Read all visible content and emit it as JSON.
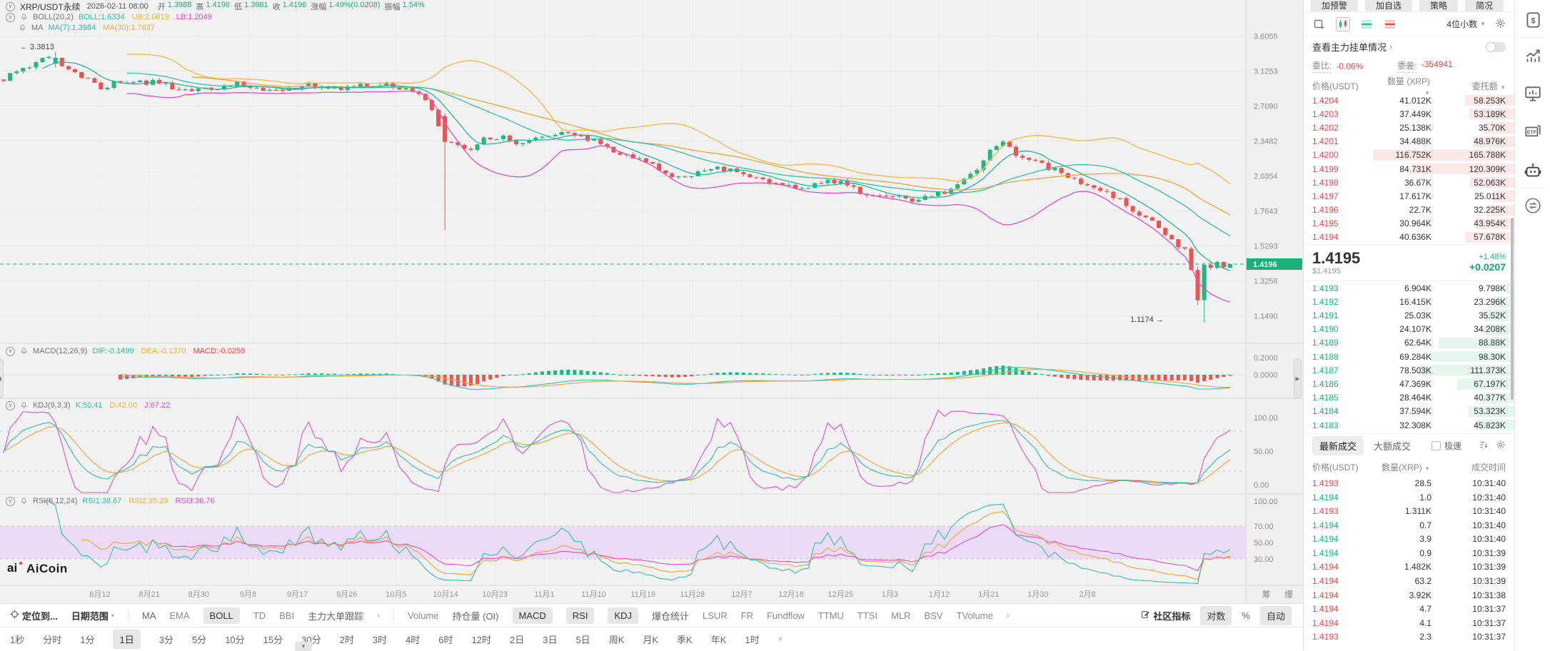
{
  "main_legend": {
    "symbol": "XRP/USDT永续",
    "datetime": "2026-02-11 08:00",
    "stats": [
      {
        "l": "开",
        "v": "1.3988"
      },
      {
        "l": "高",
        "v": "1.4196"
      },
      {
        "l": "低",
        "v": "1.3981"
      },
      {
        "l": "收",
        "v": "1.4196"
      },
      {
        "l": "涨幅",
        "v": "1.49%(0.0208)"
      },
      {
        "l": "振幅",
        "v": "1.54%"
      }
    ],
    "value_color": "#1fae79"
  },
  "boll_legend": {
    "name": "BOLL(20,2)",
    "items": [
      {
        "t": "BOLL:1.6334",
        "c": "#2fbfa0"
      },
      {
        "t": "UB:2.0619",
        "c": "#f2af3a"
      },
      {
        "t": "LB:1.2049",
        "c": "#e645c8"
      }
    ]
  },
  "ma_legend": {
    "name": "MA",
    "items": [
      {
        "t": "MA(7):1.3984",
        "c": "#2fbfa0"
      },
      {
        "t": "MA(30):1.7637",
        "c": "#f2af3a"
      }
    ]
  },
  "macd_legend": {
    "name": "MACD(12,26,9)",
    "items": [
      {
        "t": "DIF:-0.1499",
        "c": "#2fbfa0"
      },
      {
        "t": "DEA:-0.1370",
        "c": "#f2af3a"
      },
      {
        "t": "MACD:-0.0259",
        "c": "#ee4b49"
      }
    ]
  },
  "kdj_legend": {
    "name": "KDJ(9,3,3)",
    "items": [
      {
        "t": "K:50.41",
        "c": "#2fbfa0"
      },
      {
        "t": "D:42.00",
        "c": "#f2af3a"
      },
      {
        "t": "J:67.22",
        "c": "#e645c8"
      }
    ]
  },
  "rsi_legend": {
    "name": "RSI(6,12,24)",
    "items": [
      {
        "t": "RSI1:38.67",
        "c": "#2fbfa0"
      },
      {
        "t": "RSI2:35.29",
        "c": "#f2af3a"
      },
      {
        "t": "RSI3:36.76",
        "c": "#e645c8"
      }
    ]
  },
  "annotations": {
    "high": "← 3.3813",
    "low": "1.1174 →"
  },
  "watermark": "AiCoin",
  "axis_extra": "筹 爆",
  "chart_data": {
    "type": "candlestick",
    "title": "XRP/USDT perpetual, 1D, log scale",
    "x_labels": [
      "8月12",
      "8月21",
      "8月30",
      "9月8",
      "9月17",
      "9月26",
      "10月5",
      "10月14",
      "10月23",
      "11月1",
      "11月10",
      "11月19",
      "11月28",
      "12月7",
      "12月16",
      "12月25",
      "1月3",
      "1月12",
      "1月21",
      "1月30",
      "2月8"
    ],
    "y_ticks_main": [
      3.6055,
      3.1253,
      2.709,
      2.3482,
      2.0354,
      1.7643,
      1.5293,
      1.3256,
      1.149
    ],
    "current_price": 1.4196,
    "y_ticks_macd": [
      "0.2000",
      "0.0000"
    ],
    "y_ticks_kdj": [
      "100.00",
      "50.00",
      "0.00"
    ],
    "y_ticks_rsi": [
      "100.00",
      "70.00",
      "50.00",
      "30.00"
    ],
    "high_marker": 3.3813,
    "low_marker": 1.1174,
    "last_candle": {
      "open": 1.3988,
      "high": 1.4196,
      "low": 1.3981,
      "close": 1.4196
    },
    "price_path_anchors": [
      [
        0.0,
        3.02
      ],
      [
        0.025,
        3.22
      ],
      [
        0.042,
        3.3
      ],
      [
        0.06,
        3.08
      ],
      [
        0.08,
        2.93
      ],
      [
        0.105,
        3.03
      ],
      [
        0.13,
        2.95
      ],
      [
        0.16,
        2.87
      ],
      [
        0.19,
        2.97
      ],
      [
        0.22,
        2.89
      ],
      [
        0.25,
        2.96
      ],
      [
        0.28,
        2.92
      ],
      [
        0.31,
        2.96
      ],
      [
        0.335,
        2.88
      ],
      [
        0.35,
        2.66
      ],
      [
        0.358,
        2.35
      ],
      [
        0.375,
        2.26
      ],
      [
        0.4,
        2.4
      ],
      [
        0.425,
        2.33
      ],
      [
        0.45,
        2.42
      ],
      [
        0.475,
        2.36
      ],
      [
        0.5,
        2.26
      ],
      [
        0.525,
        2.14
      ],
      [
        0.55,
        2.02
      ],
      [
        0.575,
        2.1
      ],
      [
        0.6,
        2.06
      ],
      [
        0.625,
        1.98
      ],
      [
        0.65,
        1.94
      ],
      [
        0.675,
        2.01
      ],
      [
        0.7,
        1.91
      ],
      [
        0.725,
        1.87
      ],
      [
        0.75,
        1.85
      ],
      [
        0.77,
        1.91
      ],
      [
        0.79,
        2.04
      ],
      [
        0.805,
        2.28
      ],
      [
        0.815,
        2.33
      ],
      [
        0.83,
        2.2
      ],
      [
        0.85,
        2.12
      ],
      [
        0.87,
        2.03
      ],
      [
        0.89,
        1.92
      ],
      [
        0.91,
        1.84
      ],
      [
        0.925,
        1.76
      ],
      [
        0.94,
        1.65
      ],
      [
        0.955,
        1.55
      ],
      [
        0.965,
        1.5
      ],
      [
        0.972,
        1.28
      ],
      [
        0.978,
        1.4
      ],
      [
        0.985,
        1.41
      ],
      [
        0.992,
        1.4
      ],
      [
        1.0,
        1.4196
      ]
    ],
    "indicator_readings": {
      "BOLL": 1.6334,
      "UB": 2.0619,
      "LB": 1.2049,
      "MA7": 1.3984,
      "MA30": 1.7637,
      "DIF": -0.1499,
      "DEA": -0.137,
      "MACD": -0.0259,
      "K": 50.41,
      "D": 42.0,
      "J": 67.22,
      "RSI1": 38.67,
      "RSI2": 35.29,
      "RSI3": 36.76
    },
    "up_color": "#22b585",
    "down_color": "#ef5350"
  },
  "toolbar1": [
    {
      "label": "定位到...",
      "bold": true,
      "icon": "locate"
    },
    {
      "label": "日期范围",
      "bold": true,
      "caret": true
    },
    {
      "div": true
    },
    {
      "label": "MA"
    },
    {
      "label": "EMA",
      "en": true
    },
    {
      "label": "BOLL",
      "active": true
    },
    {
      "label": "TD",
      "en": true
    },
    {
      "label": "BBI",
      "en": true
    },
    {
      "label": "主力大单跟踪"
    },
    {
      "label": "›",
      "chevbtn": true
    },
    {
      "div": true
    },
    {
      "label": "Volume",
      "en": true
    },
    {
      "label": "持仓量 (OI)"
    },
    {
      "label": "MACD",
      "active": true
    },
    {
      "label": "RSI",
      "active": true
    },
    {
      "label": "KDJ",
      "active": true
    },
    {
      "label": "爆仓统计"
    },
    {
      "label": "LSUR",
      "en": true
    },
    {
      "label": "FR",
      "en": true
    },
    {
      "label": "Fundflow",
      "en": true
    },
    {
      "label": "TTMU",
      "en": true
    },
    {
      "label": "TTSI",
      "en": true
    },
    {
      "label": "MLR",
      "en": true
    },
    {
      "label": "BSV",
      "en": true
    },
    {
      "label": "TVolume",
      "en": true
    },
    {
      "label": "›",
      "chevbtn": true
    }
  ],
  "toolbar1_right": [
    {
      "label": "社区指标",
      "bold": true,
      "icon": "edit"
    },
    {
      "label": "对数",
      "active": true
    },
    {
      "label": "%"
    },
    {
      "label": "自动",
      "active": true
    }
  ],
  "toolbar2": [
    {
      "label": "1秒"
    },
    {
      "label": "分时"
    },
    {
      "label": "1分"
    },
    {
      "label": "1日",
      "active": true
    },
    {
      "label": "3分"
    },
    {
      "label": "5分"
    },
    {
      "label": "10分"
    },
    {
      "label": "15分"
    },
    {
      "label": "30分"
    },
    {
      "label": "2时"
    },
    {
      "label": "3时"
    },
    {
      "label": "4时"
    },
    {
      "label": "6时"
    },
    {
      "label": "12时"
    },
    {
      "label": "2日"
    },
    {
      "label": "3日"
    },
    {
      "label": "5日"
    },
    {
      "label": "周K"
    },
    {
      "label": "月K"
    },
    {
      "label": "季K"
    },
    {
      "label": "年K"
    },
    {
      "label": "1时"
    },
    {
      "label": "×",
      "chevbtn": true
    }
  ],
  "right_panel": {
    "top_buttons": [
      "加预警",
      "加自选",
      "策略",
      "简况"
    ],
    "decimal_selector": "4位小数",
    "main_orders_link": "查看主力挂单情况",
    "ratio_label": "委比:",
    "ratio_value": "-0.06%",
    "diff_label": "委差:",
    "diff_value": "-354941",
    "book_header": [
      "价格(USDT)",
      "数量 (XRP)",
      "委托额"
    ],
    "asks": [
      [
        "1.4204",
        "41.012K",
        "58.253K",
        58.253
      ],
      [
        "1.4203",
        "37.449K",
        "53.189K",
        53.189
      ],
      [
        "1.4202",
        "25.138K",
        "35.70K",
        35.7
      ],
      [
        "1.4201",
        "34.488K",
        "48.976K",
        48.976
      ],
      [
        "1.4200",
        "116.752K",
        "165.788K",
        165.788
      ],
      [
        "1.4199",
        "84.731K",
        "120.309K",
        120.309
      ],
      [
        "1.4198",
        "36.67K",
        "52.063K",
        52.063
      ],
      [
        "1.4197",
        "17.617K",
        "25.011K",
        25.011
      ],
      [
        "1.4196",
        "22.7K",
        "32.225K",
        32.225
      ],
      [
        "1.4195",
        "30.964K",
        "43.954K",
        43.954
      ],
      [
        "1.4194",
        "40.636K",
        "57.678K",
        57.678
      ]
    ],
    "bids": [
      [
        "1.4193",
        "6.904K",
        "9.798K",
        9.798
      ],
      [
        "1.4192",
        "16.415K",
        "23.296K",
        23.296
      ],
      [
        "1.4191",
        "25.03K",
        "35.52K",
        35.52
      ],
      [
        "1.4190",
        "24.107K",
        "34.208K",
        34.208
      ],
      [
        "1.4189",
        "62.64K",
        "88.88K",
        88.88
      ],
      [
        "1.4188",
        "69.284K",
        "98.30K",
        98.3
      ],
      [
        "1.4187",
        "78.503K",
        "111.373K",
        111.373
      ],
      [
        "1.4186",
        "47.369K",
        "67.197K",
        67.197
      ],
      [
        "1.4185",
        "28.464K",
        "40.377K",
        40.377
      ],
      [
        "1.4184",
        "37.594K",
        "53.323K",
        53.323
      ],
      [
        "1.4183",
        "32.308K",
        "45.823K",
        45.823
      ]
    ],
    "price_block": {
      "price": "1.4195",
      "usd": "$1.4195",
      "pct": "+1.48%",
      "chg": "+0.0207"
    },
    "trades_tabs": [
      "最新成交",
      "大额成交"
    ],
    "fast_label": "极速",
    "trades_header": [
      "价格(USDT)",
      "数量(XRP)",
      "成交时间"
    ],
    "trades": [
      [
        "1.4193",
        "28.5",
        "10:31:40",
        "s"
      ],
      [
        "1.4194",
        "1.0",
        "10:31:40",
        "b"
      ],
      [
        "1.4193",
        "1.311K",
        "10:31:40",
        "s"
      ],
      [
        "1.4194",
        "0.7",
        "10:31:40",
        "b"
      ],
      [
        "1.4194",
        "3.9",
        "10:31:40",
        "b"
      ],
      [
        "1.4194",
        "0.9",
        "10:31:39",
        "b"
      ],
      [
        "1.4194",
        "1.482K",
        "10:31:39",
        "s"
      ],
      [
        "1.4194",
        "63.2",
        "10:31:39",
        "s"
      ],
      [
        "1.4194",
        "3.92K",
        "10:31:38",
        "s"
      ],
      [
        "1.4194",
        "4.7",
        "10:31:37",
        "s"
      ],
      [
        "1.4194",
        "4.1",
        "10:31:37",
        "s"
      ],
      [
        "1.4193",
        "2.3",
        "10:31:37",
        "s"
      ]
    ]
  },
  "side_icons": [
    "wallet-dollar-icon",
    "trend-up-icon",
    "monitor-chart-icon",
    "etf-icon",
    "robot-icon",
    "swap-icon"
  ]
}
